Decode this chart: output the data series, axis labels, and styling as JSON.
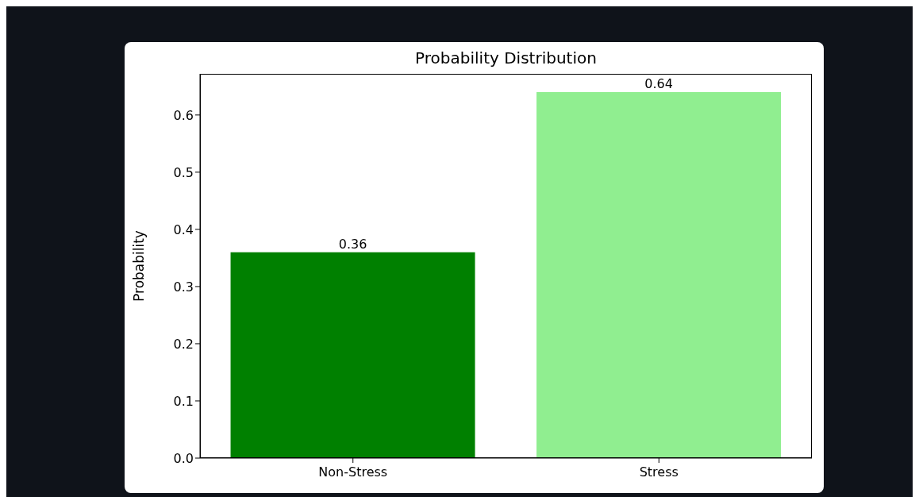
{
  "chart_data": {
    "type": "bar",
    "title": "Probability Distribution",
    "ylabel": "Probability",
    "categories": [
      "Non-Stress",
      "Stress"
    ],
    "values": [
      0.36,
      0.64
    ],
    "colors": [
      "#008000",
      "#90ee90"
    ],
    "ylim": [
      0,
      0.672
    ],
    "yticks": [
      {
        "value": 0,
        "label": "0.0"
      },
      0.1,
      0.2,
      0.3,
      0.4,
      0.5,
      0.6
    ],
    "data_labels": true,
    "grid": false
  }
}
